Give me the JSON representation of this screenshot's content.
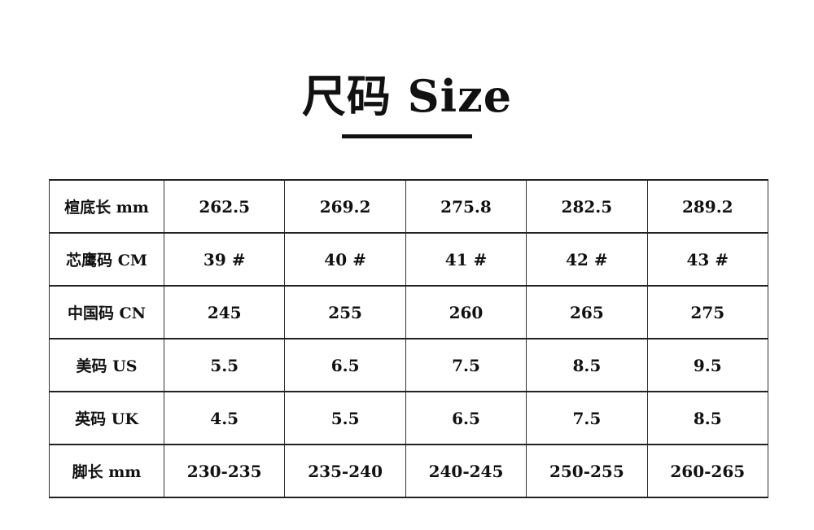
{
  "title": "尺码 Size",
  "table": {
    "rows": [
      {
        "label": "楦底长 mm",
        "values": [
          "262.5",
          "269.2",
          "275.8",
          "282.5",
          "289.2"
        ]
      },
      {
        "label": "芯鹰码  CM",
        "values": [
          "39 #",
          "40 #",
          "41 #",
          "42 #",
          "43 #"
        ]
      },
      {
        "label": "中国码  CN",
        "values": [
          "245",
          "255",
          "260",
          "265",
          "275"
        ]
      },
      {
        "label": "美码  US",
        "values": [
          "5.5",
          "6.5",
          "7.5",
          "8.5",
          "9.5"
        ]
      },
      {
        "label": "英码  UK",
        "values": [
          "4.5",
          "5.5",
          "6.5",
          "7.5",
          "8.5"
        ]
      },
      {
        "label": "脚长  mm",
        "values": [
          "230-235",
          "235-240",
          "240-245",
          "250-255",
          "260-265"
        ]
      }
    ]
  }
}
